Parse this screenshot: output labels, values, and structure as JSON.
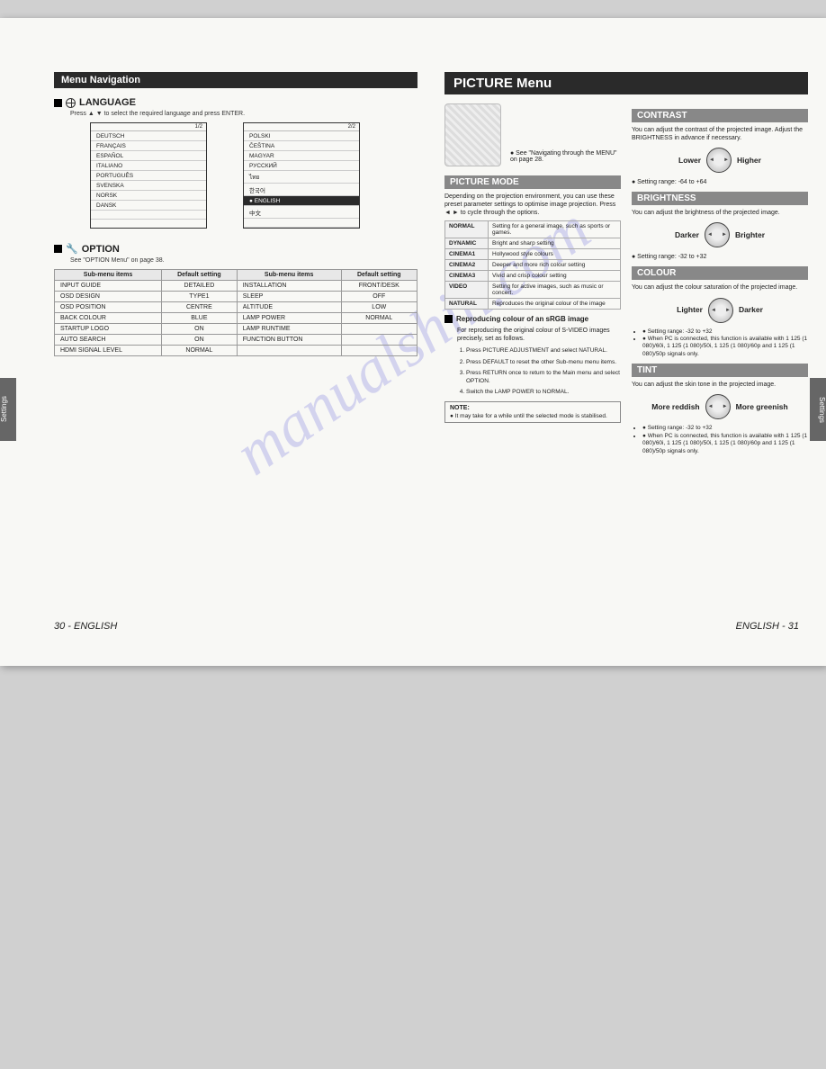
{
  "watermark": "manualshin.com",
  "left": {
    "bar_title": "Menu Navigation",
    "language": {
      "heading": "LANGUAGE",
      "instruction": "Press ▲ ▼ to select the required language and press ENTER.",
      "box1_page": "1/2",
      "box2_page": "2/2",
      "box1_items": [
        "DEUTSCH",
        "FRANÇAIS",
        "ESPAÑOL",
        "ITALIANO",
        "PORTUGUÊS",
        "SVENSKA",
        "NORSK",
        "DANSK"
      ],
      "box2_items": [
        "POLSKI",
        "ČEŠTINA",
        "MAGYAR",
        "РУССКИЙ",
        "ไทย",
        "한국어"
      ],
      "box2_selected": "ENGLISH",
      "box2_last": "中文"
    },
    "option": {
      "heading": "OPTION",
      "instruction": "See \"OPTION Menu\" on page 38.",
      "cols": [
        "Sub-menu items",
        "Default setting",
        "Sub-menu items",
        "Default setting"
      ],
      "rows": [
        [
          "INPUT GUIDE",
          "DETAILED",
          "INSTALLATION",
          "FRONT/DESK"
        ],
        [
          "OSD DESIGN",
          "TYPE1",
          "SLEEP",
          "OFF"
        ],
        [
          "OSD POSITION",
          "CENTRE",
          "ALTITUDE",
          "LOW"
        ],
        [
          "BACK COLOUR",
          "BLUE",
          "LAMP POWER",
          "NORMAL"
        ],
        [
          "STARTUP LOGO",
          "ON",
          "LAMP RUNTIME",
          ""
        ],
        [
          "AUTO SEARCH",
          "ON",
          "FUNCTION BUTTON",
          ""
        ],
        [
          "HDMI SIGNAL LEVEL",
          "NORMAL",
          "",
          ""
        ]
      ]
    },
    "footer_page": "30 -",
    "footer_lang": "ENGLISH",
    "side_tab": "Settings"
  },
  "right": {
    "bar_title": "PICTURE Menu",
    "remote_note": "● See \"Navigating through the MENU\" on page 28.",
    "picture_mode": {
      "heading": "PICTURE MODE",
      "intro": "Depending on the projection environment, you can use these preset parameter settings to optimise image projection. Press ◄ ► to cycle through the options.",
      "rows": [
        [
          "NORMAL",
          "Setting for a general image, such as sports or games."
        ],
        [
          "DYNAMIC",
          "Bright and sharp setting"
        ],
        [
          "CINEMA1",
          "Hollywood style colours"
        ],
        [
          "CINEMA2",
          "Deeper and more rich colour setting"
        ],
        [
          "CINEMA3",
          "Vivid and crisp colour setting"
        ],
        [
          "VIDEO",
          "Setting for active images, such as music or concert."
        ],
        [
          "NATURAL",
          "Reproduces the original colour of the image"
        ]
      ]
    },
    "srgb": {
      "heading": "Reproducing colour of an sRGB image",
      "intro": "For reproducing the original colour of S-VIDEO images precisely, set as follows.",
      "steps": [
        "Press PICTURE ADJUSTMENT and select NATURAL.",
        "Press DEFAULT to reset the other Sub-menu menu items.",
        "Press RETURN once to return to the Main menu and select OPTION.",
        "Switch the LAMP POWER to NORMAL."
      ],
      "note_label": "NOTE:",
      "note_text": "● It may take for a while until the selected mode is stabilised."
    },
    "contrast": {
      "heading": "CONTRAST",
      "text": "You can adjust the contrast of the projected image. Adjust the BRIGHTNESS in advance if necessary.",
      "left_label": "Lower",
      "right_label": "Higher",
      "range": "● Setting range: -64 to +64"
    },
    "brightness": {
      "heading": "BRIGHTNESS",
      "text": "You can adjust the brightness of the projected image.",
      "left_label": "Darker",
      "right_label": "Brighter",
      "range": "● Setting range: -32 to +32"
    },
    "colour": {
      "heading": "COLOUR",
      "text": "You can adjust the colour saturation of the projected image.",
      "left_label": "Lighter",
      "right_label": "Darker",
      "range": "● Setting range: -32 to +32",
      "pc_note": "● When PC is connected, this function is available with 1 125 (1 080)/60i, 1 125 (1 080)/50i, 1 125 (1 080)/60p and 1 125 (1 080)/50p signals only."
    },
    "tint": {
      "heading": "TINT",
      "text": "You can adjust the skin tone in the projected image.",
      "left_label": "More reddish",
      "right_label": "More greenish",
      "range": "● Setting range: -32 to +32",
      "pc_note": "● When PC is connected, this function is available with 1 125 (1 080)/60i, 1 125 (1 080)/50i, 1 125 (1 080)/60p and 1 125 (1 080)/50p signals only."
    },
    "footer_lang": "ENGLISH",
    "footer_page": "- 31",
    "side_tab": "Settings"
  }
}
